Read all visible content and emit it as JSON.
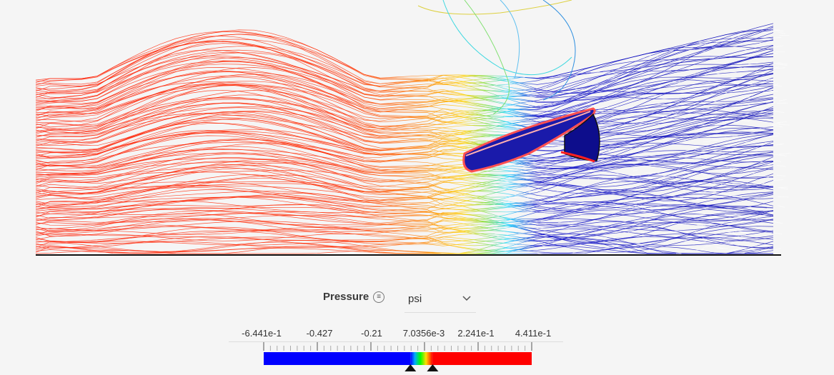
{
  "legend": {
    "title": "Pressure",
    "menu_icon": "list-icon",
    "unit": "psi",
    "tick_labels": [
      "-6.441e-1",
      "-0.427",
      "-0.21",
      "7.0356e-3",
      "2.241e-1",
      "4.411e-1"
    ],
    "range_min": -0.6441,
    "range_max": 0.4411,
    "handle_low": -0.05,
    "handle_high": 0.04,
    "colors": {
      "low": "#0000ff",
      "mid": "#00ff00",
      "high": "#ff0000"
    }
  }
}
